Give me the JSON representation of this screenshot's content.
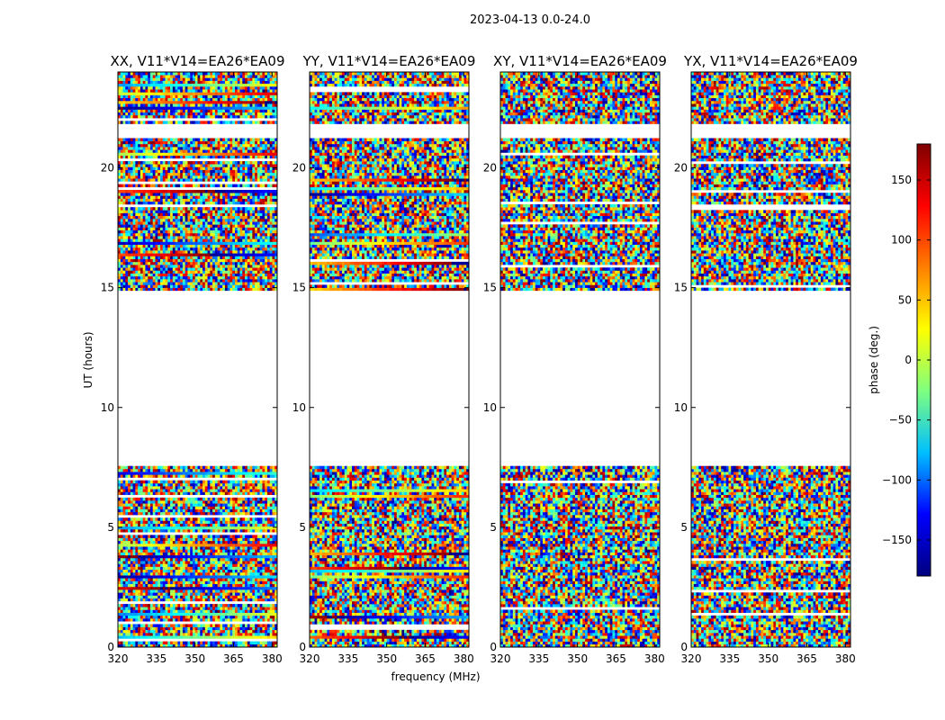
{
  "chart_data": {
    "type": "heatmap",
    "title": "2023-04-13 0.0-24.0",
    "xlabel": "frequency (MHz)",
    "ylabel": "UT (hours)",
    "xlim": [
      320,
      382
    ],
    "ylim": [
      0,
      24
    ],
    "xticks": [
      "320",
      "335",
      "350",
      "365",
      "380"
    ],
    "xtick_values": [
      320,
      335,
      350,
      365,
      380
    ],
    "yticks": [
      "0",
      "5",
      "10",
      "15",
      "20"
    ],
    "ytick_values": [
      0,
      5,
      10,
      15,
      20
    ],
    "data_gaps_hours": [
      [
        7.6,
        14.9
      ],
      [
        21.2,
        21.8
      ]
    ],
    "colorbar": {
      "label": "phase (deg.)",
      "range": [
        -180,
        180
      ],
      "ticks": [
        "150",
        "100",
        "50",
        "0",
        "−50",
        "−100",
        "−150"
      ],
      "tick_values": [
        150,
        100,
        50,
        0,
        -50,
        -100,
        -150
      ],
      "colormap": [
        "#00007f",
        "#0000ff",
        "#00bfff",
        "#7fff7f",
        "#ffff00",
        "#ff7f00",
        "#ff0000",
        "#7f0000"
      ]
    },
    "panels": [
      {
        "name": "XX",
        "title": "XX, V11*V14=EA26*EA09"
      },
      {
        "name": "YY",
        "title": "YY, V11*V14=EA26*EA09"
      },
      {
        "name": "XY",
        "title": "XY, V11*V14=EA26*EA09"
      },
      {
        "name": "YX",
        "title": "YX, V11*V14=EA26*EA09"
      }
    ]
  }
}
